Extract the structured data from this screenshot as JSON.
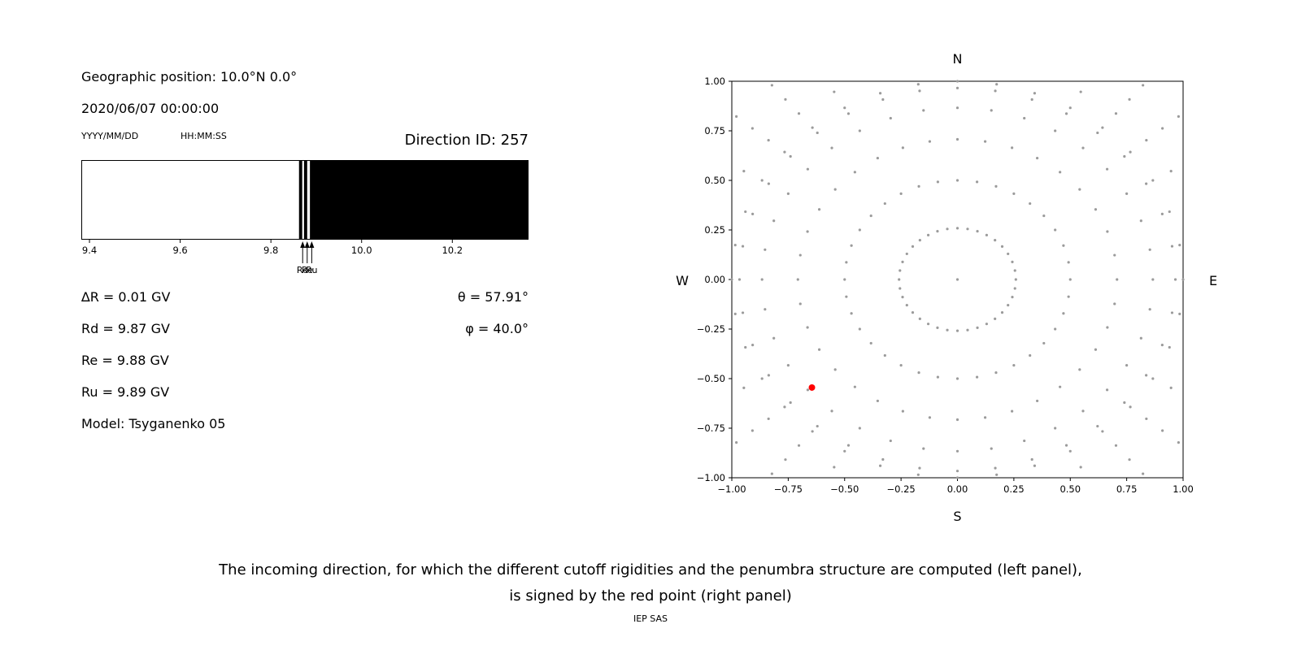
{
  "header": {
    "geo_position": "Geographic position: 10.0°N 0.0°",
    "datetime": "2020/06/07 00:00:00",
    "date_format": "YYYY/MM/DD",
    "time_format": "HH:MM:SS",
    "direction_id": "Direction ID: 257"
  },
  "info": {
    "delta_r": "∆R = 0.01 GV",
    "rd": "Rd = 9.87 GV",
    "re": "Re = 9.88 GV",
    "ru": "Ru = 9.89 GV",
    "model": "Model: Tsyganenko 05",
    "theta": "θ = 57.91°",
    "phi": "φ = 40.0°"
  },
  "caption": {
    "line1": "The incoming direction, for which the different cutoff rigidities and the penumbra structure are computed (left panel),",
    "line2": "is signed by the red point (right panel)",
    "credit": "IEP SAS"
  },
  "chart_data": [
    {
      "type": "heatmap",
      "name": "penumbra-strip",
      "x_range": [
        9.382,
        10.368
      ],
      "x_ticks": [
        {
          "value": 9.4,
          "label": "9.4"
        },
        {
          "value": 9.6,
          "label": "9.6"
        },
        {
          "value": 9.8,
          "label": "9.8"
        },
        {
          "value": 10.0,
          "label": "10.0"
        },
        {
          "value": 10.2,
          "label": "10.2"
        }
      ],
      "allowed_color": "#ffffff",
      "forbidden_color": "#000000",
      "forbidden_segments_gv": [
        [
          9.862,
          9.869
        ],
        [
          9.873,
          9.88
        ],
        [
          9.886,
          10.368
        ]
      ],
      "cutoff_markers": [
        {
          "label": "Rd",
          "value": 9.87
        },
        {
          "label": "Re",
          "value": 9.88
        },
        {
          "label": "Ru",
          "value": 9.89
        }
      ]
    },
    {
      "type": "scatter",
      "name": "incoming-directions",
      "xlim": [
        -1.0,
        1.0
      ],
      "ylim": [
        -1.0,
        1.0
      ],
      "x_ticks": [
        {
          "value": -1.0,
          "label": "−1.00"
        },
        {
          "value": -0.75,
          "label": "−0.75"
        },
        {
          "value": -0.5,
          "label": "−0.50"
        },
        {
          "value": -0.25,
          "label": "−0.25"
        },
        {
          "value": 0.0,
          "label": "0.00"
        },
        {
          "value": 0.25,
          "label": "0.25"
        },
        {
          "value": 0.5,
          "label": "0.50"
        },
        {
          "value": 0.75,
          "label": "0.75"
        },
        {
          "value": 1.0,
          "label": "1.00"
        }
      ],
      "y_ticks": [
        {
          "value": 1.0,
          "label": "1.00"
        },
        {
          "value": 0.75,
          "label": "0.75"
        },
        {
          "value": 0.5,
          "label": "0.50"
        },
        {
          "value": 0.25,
          "label": "0.25"
        },
        {
          "value": 0.0,
          "label": "0.00"
        },
        {
          "value": -0.25,
          "label": "−0.25"
        },
        {
          "value": -0.5,
          "label": "−0.50"
        },
        {
          "value": -0.75,
          "label": "−0.75"
        },
        {
          "value": -1.0,
          "label": "−1.00"
        }
      ],
      "compass": {
        "north": "N",
        "south": "S",
        "east": "E",
        "west": "W"
      },
      "grid_dots": {
        "azimuth_step_deg": 10,
        "radii": [
          0.2588,
          0.5,
          0.7071,
          0.866,
          0.9659,
          1.0,
          1.093,
          1.186,
          1.279,
          1.372
        ],
        "include_center_dot": true,
        "color": "#9b9b9b",
        "clip_abs": 1.0
      },
      "red_point": {
        "x": -0.645,
        "y": -0.545,
        "color": "#ff0000"
      }
    }
  ]
}
